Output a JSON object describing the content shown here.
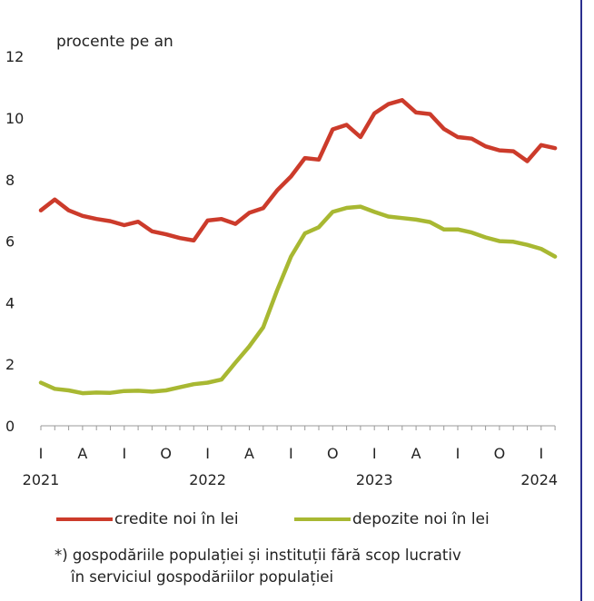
{
  "chart_data": {
    "type": "line",
    "ylabel": "procente pe an",
    "ylim": [
      0,
      12
    ],
    "yticks": [
      "0",
      "2",
      "4",
      "6",
      "8",
      "10",
      "12"
    ],
    "months": [
      "2021-01",
      "2021-02",
      "2021-03",
      "2021-04",
      "2021-05",
      "2021-06",
      "2021-07",
      "2021-08",
      "2021-09",
      "2021-10",
      "2021-11",
      "2021-12",
      "2022-01",
      "2022-02",
      "2022-03",
      "2022-04",
      "2022-05",
      "2022-06",
      "2022-07",
      "2022-08",
      "2022-09",
      "2022-10",
      "2022-11",
      "2022-12",
      "2023-01",
      "2023-02",
      "2023-03",
      "2023-04",
      "2023-05",
      "2023-06",
      "2023-07",
      "2023-08",
      "2023-09",
      "2023-10",
      "2023-11",
      "2023-12",
      "2024-01",
      "2024-02"
    ],
    "quarter_labels": [
      "I",
      "A",
      "I",
      "O",
      "I",
      "A",
      "I",
      "O",
      "I",
      "A",
      "I",
      "O",
      "I"
    ],
    "year_labels": [
      "2021",
      "2022",
      "2023",
      "2024"
    ],
    "series": [
      {
        "name": "credite noi în lei",
        "color": "#cc3b2b",
        "values": [
          7.0,
          7.35,
          7.0,
          6.82,
          6.72,
          6.65,
          6.52,
          6.63,
          6.32,
          6.22,
          6.1,
          6.02,
          6.67,
          6.72,
          6.56,
          6.92,
          7.07,
          7.65,
          8.1,
          8.7,
          8.65,
          9.63,
          9.78,
          9.38,
          10.15,
          10.45,
          10.58,
          10.18,
          10.13,
          9.65,
          9.38,
          9.33,
          9.08,
          8.95,
          8.92,
          8.6,
          9.12,
          9.02
        ]
      },
      {
        "name": "depozite noi în lei",
        "color": "#a8b832",
        "values": [
          1.4,
          1.2,
          1.15,
          1.06,
          1.08,
          1.07,
          1.13,
          1.14,
          1.11,
          1.15,
          1.25,
          1.35,
          1.4,
          1.5,
          2.05,
          2.58,
          3.2,
          4.4,
          5.5,
          6.25,
          6.45,
          6.95,
          7.08,
          7.12,
          6.95,
          6.8,
          6.75,
          6.7,
          6.62,
          6.38,
          6.38,
          6.28,
          6.12,
          6.0,
          5.98,
          5.88,
          5.75,
          5.5
        ]
      }
    ]
  },
  "note": {
    "line1": "*) gospodăriile populației și instituții fără scop lucrativ",
    "line2": "în serviciul gospodăriilor populației"
  }
}
